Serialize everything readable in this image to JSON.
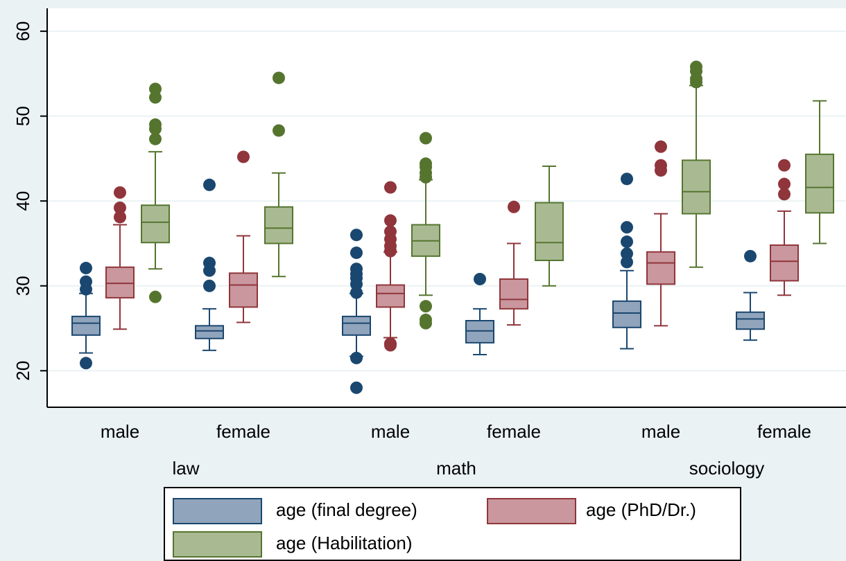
{
  "chart_data": {
    "type": "box",
    "categories": [
      "male",
      "female",
      "male",
      "female",
      "male",
      "female"
    ],
    "groups": [
      "law",
      "math",
      "sociology"
    ],
    "ylim": [
      15.7,
      62.7
    ],
    "yticks": [
      20,
      30,
      40,
      50,
      60
    ],
    "grid": true,
    "series": [
      {
        "name": "age (final degree)",
        "color": "#90a4bc",
        "edge": "#1a476f",
        "boxes": [
          {
            "whislo": 22.1,
            "q1": 24.2,
            "med": 25.6,
            "q3": 26.4,
            "whishi": 29.1,
            "fliers": [
              32.1,
              30.5,
              29.6,
              20.9
            ]
          },
          {
            "whislo": 22.4,
            "q1": 23.8,
            "med": 24.7,
            "q3": 25.3,
            "whishi": 27.3,
            "fliers": [
              41.9,
              32.7,
              31.8,
              30.0
            ]
          },
          {
            "whislo": 21.7,
            "q1": 24.2,
            "med": 25.6,
            "q3": 26.4,
            "whishi": 29.1,
            "fliers": [
              36.0,
              33.9,
              32.0,
              31.4,
              30.9,
              30.2,
              29.2,
              21.5,
              18.0
            ]
          },
          {
            "whislo": 21.9,
            "q1": 23.3,
            "med": 24.7,
            "q3": 25.9,
            "whishi": 27.3,
            "fliers": [
              30.8
            ]
          },
          {
            "whislo": 22.6,
            "q1": 25.1,
            "med": 26.8,
            "q3": 28.2,
            "whishi": 31.8,
            "fliers": [
              42.6,
              36.9,
              35.2,
              33.8,
              32.8
            ]
          },
          {
            "whislo": 23.6,
            "q1": 24.9,
            "med": 26.1,
            "q3": 26.9,
            "whishi": 29.2,
            "fliers": [
              33.5
            ]
          }
        ]
      },
      {
        "name": "age (PhD/Dr.)",
        "color": "#c9979d",
        "edge": "#90353b",
        "boxes": [
          {
            "whislo": 24.9,
            "q1": 28.6,
            "med": 30.3,
            "q3": 32.2,
            "whishi": 37.2,
            "fliers": [
              41.0,
              39.2,
              38.1
            ]
          },
          {
            "whislo": 25.7,
            "q1": 27.5,
            "med": 30.1,
            "q3": 31.5,
            "whishi": 35.9,
            "fliers": [
              45.2
            ]
          },
          {
            "whislo": 23.9,
            "q1": 27.5,
            "med": 29.1,
            "q3": 30.1,
            "whishi": 34.0,
            "fliers": [
              41.6,
              37.7,
              36.4,
              35.5,
              34.7,
              34.1,
              23.2,
              23.0
            ]
          },
          {
            "whislo": 25.4,
            "q1": 27.3,
            "med": 28.4,
            "q3": 30.8,
            "whishi": 35.0,
            "fliers": [
              39.3
            ]
          },
          {
            "whislo": 25.3,
            "q1": 30.2,
            "med": 32.7,
            "q3": 34.0,
            "whishi": 38.5,
            "fliers": [
              46.4,
              44.2,
              43.6
            ]
          },
          {
            "whislo": 28.9,
            "q1": 30.6,
            "med": 32.9,
            "q3": 34.8,
            "whishi": 38.8,
            "fliers": [
              44.2,
              42.0,
              40.8
            ]
          }
        ]
      },
      {
        "name": "age (Habilitation)",
        "color": "#a9ba93",
        "edge": "#55752f",
        "boxes": [
          {
            "whislo": 32.0,
            "q1": 35.1,
            "med": 37.5,
            "q3": 39.5,
            "whishi": 45.8,
            "fliers": [
              53.2,
              52.2,
              49.0,
              48.5,
              47.3,
              28.7
            ]
          },
          {
            "whislo": 31.1,
            "q1": 35.0,
            "med": 36.8,
            "q3": 39.3,
            "whishi": 43.3,
            "fliers": [
              54.5,
              48.3
            ]
          },
          {
            "whislo": 28.9,
            "q1": 33.5,
            "med": 35.3,
            "q3": 37.2,
            "whishi": 42.5,
            "fliers": [
              47.4,
              44.4,
              44.0,
              43.3,
              42.8,
              27.6,
              26.0,
              25.6
            ]
          },
          {
            "whislo": 30.0,
            "q1": 33.0,
            "med": 35.1,
            "q3": 39.8,
            "whishi": 44.1,
            "fliers": []
          },
          {
            "whislo": 32.2,
            "q1": 38.5,
            "med": 41.1,
            "q3": 44.8,
            "whishi": 53.6,
            "fliers": [
              55.8,
              55.3,
              54.4,
              54.0
            ]
          },
          {
            "whislo": 35.0,
            "q1": 38.6,
            "med": 41.6,
            "q3": 45.5,
            "whishi": 51.8,
            "fliers": []
          }
        ]
      }
    ]
  }
}
